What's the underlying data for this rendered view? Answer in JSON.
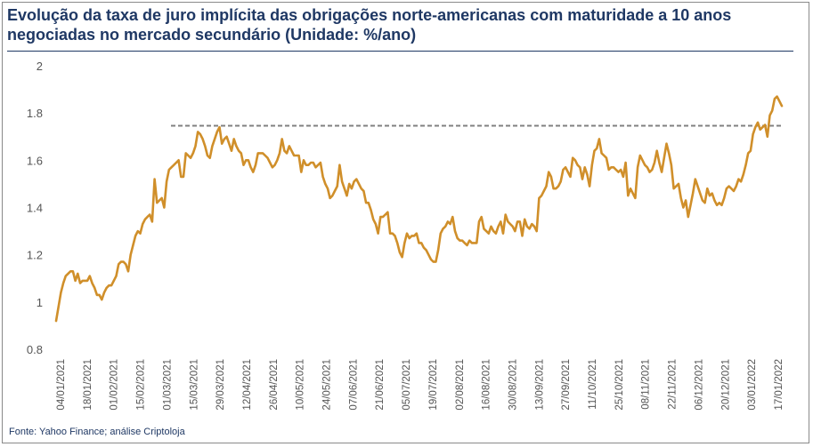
{
  "title": "Evolução da taxa de juro implícita das obrigações norte-americanas com maturidade a 10 anos negociadas no mercado secundário (Unidade: %/ano)",
  "source": "Fonte: Yahoo Finance; análise Criptoloja",
  "colors": {
    "line": "#d08f2a",
    "reference": "#808080",
    "title": "#1f3864",
    "axis": "#555555"
  },
  "chart_data": {
    "type": "line",
    "ylim": [
      0.8,
      2.0
    ],
    "yticks": [
      "0.8",
      "1",
      "1.2",
      "1.4",
      "1.6",
      "1.8",
      "2"
    ],
    "xlabels": [
      "04/01/2021",
      "18/01/2021",
      "01/02/2021",
      "15/02/2021",
      "01/03/2021",
      "15/03/2021",
      "29/03/2021",
      "12/04/2021",
      "26/04/2021",
      "10/05/2021",
      "24/05/2021",
      "07/06/2021",
      "21/06/2021",
      "05/07/2021",
      "19/07/2021",
      "02/08/2021",
      "16/08/2021",
      "30/08/2021",
      "13/09/2021",
      "27/09/2021",
      "11/10/2021",
      "25/10/2021",
      "08/11/2021",
      "22/11/2021",
      "06/12/2021",
      "20/12/2021",
      "03/01/2022",
      "17/01/2022"
    ],
    "series": [
      {
        "values": [
          0.92,
          0.98,
          1.04,
          1.08,
          1.11,
          1.12,
          1.13,
          1.13,
          1.09,
          1.12,
          1.08,
          1.09,
          1.09,
          1.09,
          1.11,
          1.08,
          1.06,
          1.03,
          1.03,
          1.01,
          1.04,
          1.06,
          1.07,
          1.07,
          1.09,
          1.11,
          1.16,
          1.17,
          1.17,
          1.16,
          1.13,
          1.2,
          1.24,
          1.28,
          1.3,
          1.29,
          1.33,
          1.35,
          1.36,
          1.37,
          1.34,
          1.52,
          1.42,
          1.43,
          1.44,
          1.4,
          1.51,
          1.56,
          1.57,
          1.58,
          1.59,
          1.6,
          1.53,
          1.53,
          1.63,
          1.62,
          1.61,
          1.63,
          1.66,
          1.72,
          1.71,
          1.69,
          1.66,
          1.62,
          1.61,
          1.66,
          1.69,
          1.72,
          1.74,
          1.67,
          1.69,
          1.7,
          1.67,
          1.64,
          1.69,
          1.66,
          1.64,
          1.63,
          1.58,
          1.6,
          1.6,
          1.57,
          1.55,
          1.58,
          1.63,
          1.63,
          1.63,
          1.62,
          1.61,
          1.59,
          1.57,
          1.58,
          1.6,
          1.63,
          1.69,
          1.64,
          1.63,
          1.66,
          1.64,
          1.62,
          1.62,
          1.62,
          1.55,
          1.6,
          1.58,
          1.58,
          1.59,
          1.59,
          1.57,
          1.58,
          1.59,
          1.53,
          1.5,
          1.48,
          1.44,
          1.45,
          1.47,
          1.49,
          1.58,
          1.51,
          1.48,
          1.45,
          1.5,
          1.48,
          1.51,
          1.52,
          1.5,
          1.48,
          1.47,
          1.42,
          1.42,
          1.39,
          1.35,
          1.33,
          1.29,
          1.36,
          1.36,
          1.37,
          1.38,
          1.29,
          1.29,
          1.28,
          1.25,
          1.21,
          1.19,
          1.25,
          1.29,
          1.27,
          1.28,
          1.28,
          1.29,
          1.25,
          1.25,
          1.23,
          1.22,
          1.2,
          1.18,
          1.17,
          1.17,
          1.22,
          1.29,
          1.31,
          1.32,
          1.34,
          1.33,
          1.36,
          1.3,
          1.27,
          1.26,
          1.26,
          1.25,
          1.24,
          1.26,
          1.25,
          1.25,
          1.25,
          1.34,
          1.36,
          1.31,
          1.3,
          1.29,
          1.32,
          1.3,
          1.29,
          1.32,
          1.34,
          1.29,
          1.37,
          1.34,
          1.33,
          1.32,
          1.3,
          1.34,
          1.34,
          1.28,
          1.35,
          1.32,
          1.31,
          1.33,
          1.32,
          1.3,
          1.44,
          1.45,
          1.47,
          1.49,
          1.55,
          1.53,
          1.48,
          1.48,
          1.49,
          1.51,
          1.56,
          1.57,
          1.55,
          1.53,
          1.61,
          1.6,
          1.58,
          1.57,
          1.52,
          1.57,
          1.54,
          1.49,
          1.58,
          1.64,
          1.65,
          1.69,
          1.63,
          1.62,
          1.61,
          1.56,
          1.57,
          1.57,
          1.56,
          1.55,
          1.56,
          1.53,
          1.59,
          1.45,
          1.48,
          1.46,
          1.44,
          1.57,
          1.62,
          1.6,
          1.58,
          1.57,
          1.55,
          1.56,
          1.59,
          1.64,
          1.59,
          1.55,
          1.61,
          1.67,
          1.63,
          1.58,
          1.48,
          1.49,
          1.5,
          1.44,
          1.4,
          1.43,
          1.36,
          1.41,
          1.46,
          1.52,
          1.49,
          1.46,
          1.43,
          1.42,
          1.48,
          1.45,
          1.46,
          1.43,
          1.41,
          1.42,
          1.41,
          1.44,
          1.48,
          1.49,
          1.48,
          1.47,
          1.49,
          1.52,
          1.51,
          1.54,
          1.58,
          1.63,
          1.64,
          1.71,
          1.74,
          1.76,
          1.73,
          1.74,
          1.75,
          1.7,
          1.79,
          1.81,
          1.86,
          1.87,
          1.85,
          1.83
        ]
      }
    ],
    "reference_level": 1.746
  }
}
